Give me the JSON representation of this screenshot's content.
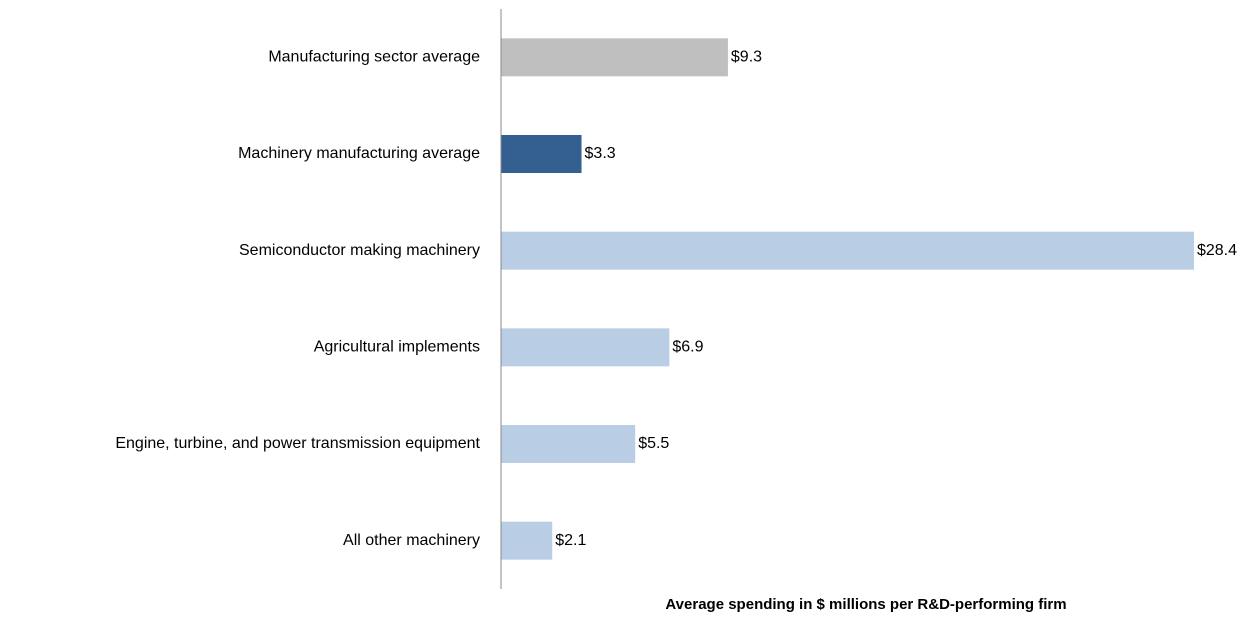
{
  "chart_data": {
    "type": "barh",
    "x_label": "Average spending in $ millions per R&D-performing firm",
    "categories": [
      "Manufacturing sector average",
      "Machinery manufacturing average",
      "Semiconductor making machinery",
      "Agricultural implements",
      "Engine, turbine, and power transmission equipment",
      "All other machinery"
    ],
    "values": [
      9.3,
      3.3,
      28.4,
      6.9,
      5.5,
      2.1
    ],
    "value_labels": [
      "$9.3",
      "$3.3",
      "$28.4",
      "$6.9",
      "$5.5",
      "$2.1"
    ],
    "colors": [
      "#bfbfbf",
      "#335f91",
      "#b9cde5",
      "#b9cde5",
      "#b9cde5",
      "#b9cde5"
    ],
    "xlim": [
      0,
      30
    ]
  }
}
